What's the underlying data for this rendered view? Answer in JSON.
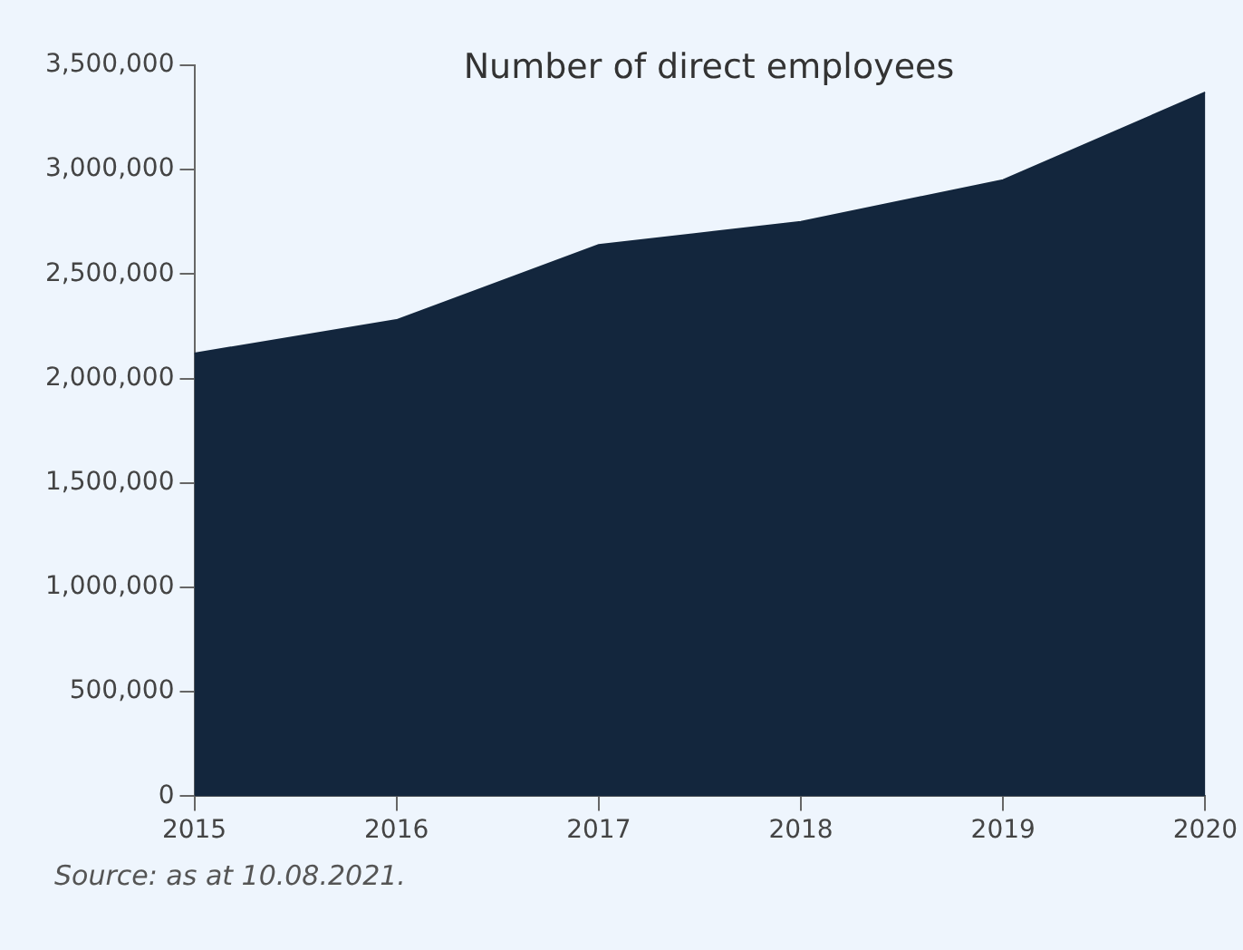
{
  "chart_data": {
    "type": "area",
    "title": "Number of direct employees",
    "x": [
      2015,
      2016,
      2017,
      2018,
      2019,
      2020
    ],
    "values": [
      2120000,
      2280000,
      2640000,
      2750000,
      2950000,
      3370000
    ],
    "color": "#13263d",
    "xlim": [
      2015,
      2020
    ],
    "xticks": [
      2015,
      2016,
      2017,
      2018,
      2019,
      2020
    ],
    "ylim": [
      0,
      3500000
    ],
    "yticks": [
      0,
      {
        "value": 500000,
        "label": "500,000"
      },
      {
        "value": 1000000,
        "label": "1,000,000"
      },
      {
        "value": 1500000,
        "label": "1,500,000"
      },
      {
        "value": 2000000,
        "label": "2,000,000"
      },
      {
        "value": 2500000,
        "label": "2,500,000"
      },
      {
        "value": 3000000,
        "label": "3,000,000"
      },
      {
        "value": 3500000,
        "label": "3,500,000"
      }
    ],
    "grid": false,
    "annotations": [
      "Source: as at 10.08.2021."
    ]
  }
}
